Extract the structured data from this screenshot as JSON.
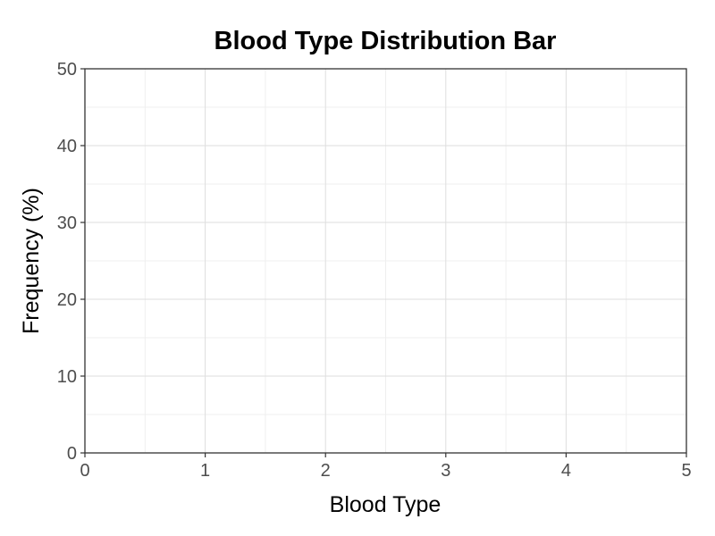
{
  "chart_data": {
    "type": "bar",
    "title": "Blood Type Distribution Bar",
    "xlabel": "Blood Type",
    "ylabel": "Frequency (%)",
    "xlim": [
      0,
      5
    ],
    "ylim": [
      0,
      50
    ],
    "x_ticks": [
      "0",
      "1",
      "2",
      "3",
      "4",
      "5"
    ],
    "y_ticks": [
      "0",
      "10",
      "20",
      "30",
      "40",
      "50"
    ],
    "categories": [],
    "values": [],
    "grid": true,
    "legend": "none",
    "colors": {
      "panel_border": "#333333",
      "grid_major": "#dedede",
      "grid_minor": "#efefef",
      "tick_text": "#4d4d4d",
      "title_text": "#000000"
    }
  }
}
